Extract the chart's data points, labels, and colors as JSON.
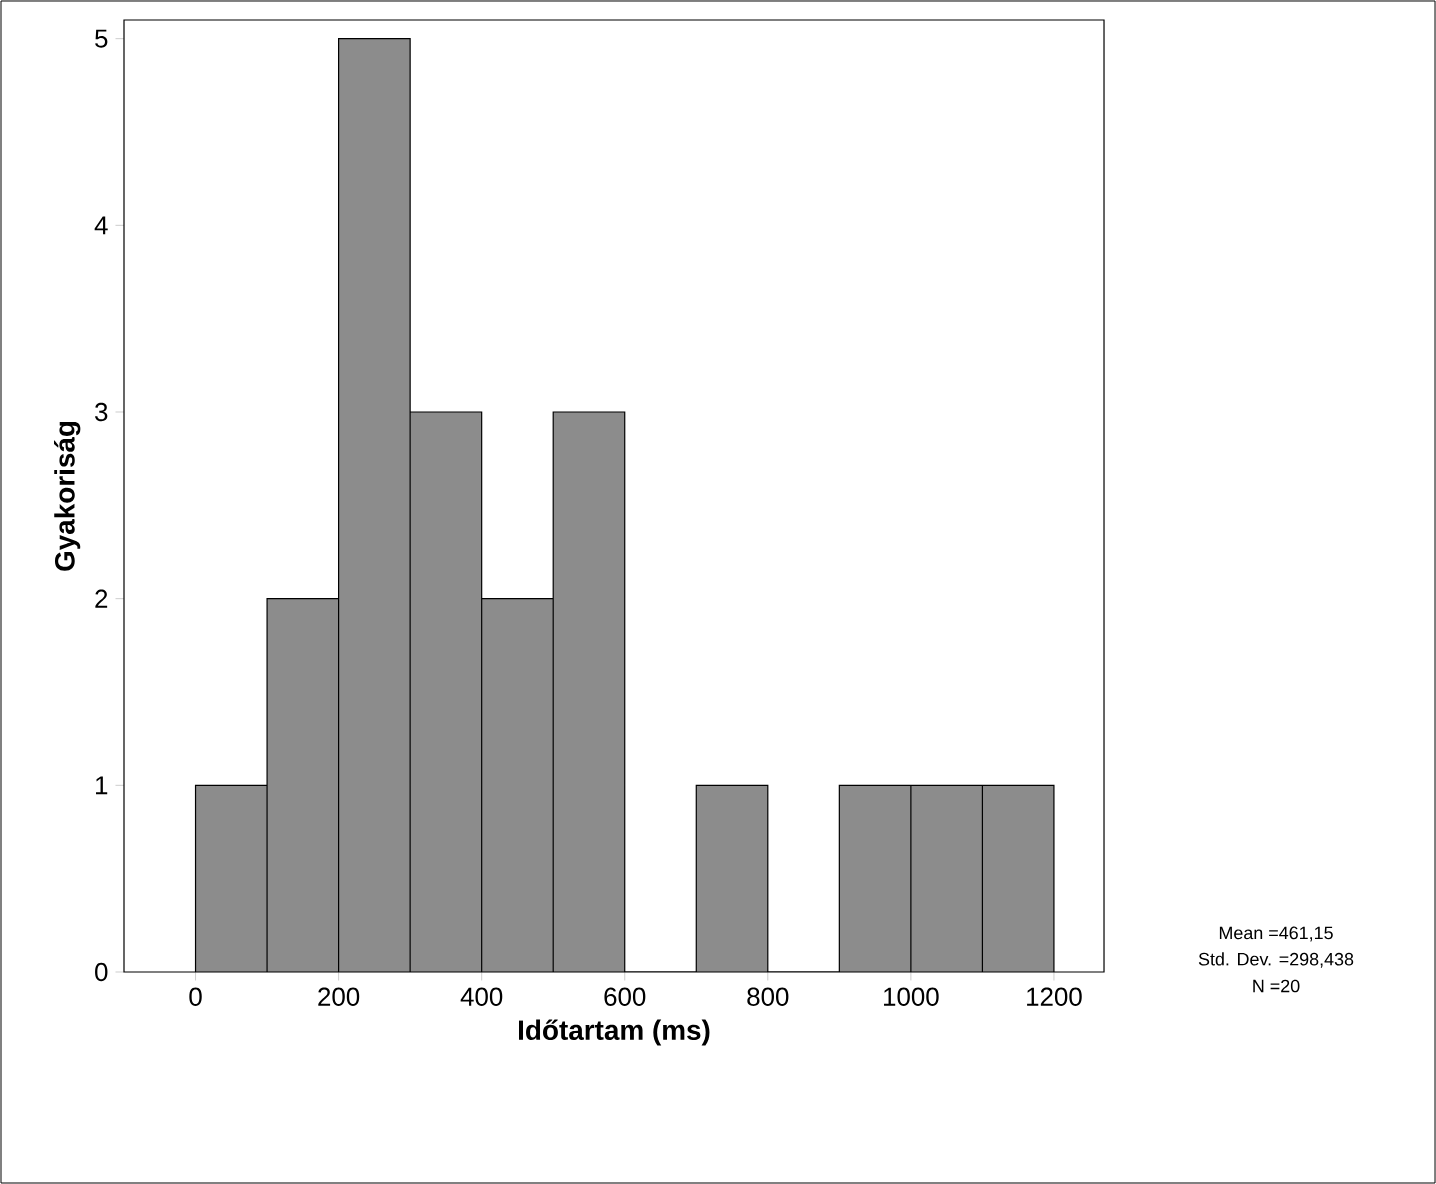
{
  "chart_data": {
    "type": "histogram",
    "xlabel": "Időtartam (ms)",
    "ylabel": "Gyakoriság",
    "bins": [
      0,
      100,
      200,
      300,
      400,
      500,
      600,
      700,
      800,
      900,
      1000,
      1100,
      1200
    ],
    "values": [
      1,
      2,
      5,
      3,
      2,
      3,
      0,
      1,
      0,
      1,
      1,
      1
    ],
    "color": "#8c8c8c",
    "xlim": [
      -100,
      1270
    ],
    "ylim": [
      0,
      5.1
    ],
    "xticks": [
      0,
      200,
      400,
      600,
      800,
      1000,
      1200
    ],
    "yticks": [
      0,
      1,
      2,
      3,
      4,
      5
    ],
    "annotations": [
      "Mean =461,15",
      "Std. Dev. =298,438",
      "N =20"
    ]
  }
}
